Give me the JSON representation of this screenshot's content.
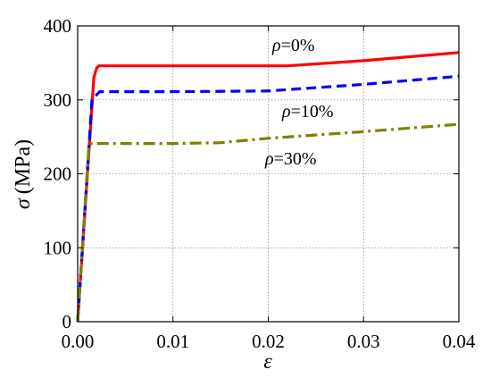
{
  "chart_data": {
    "type": "line",
    "xlabel": "ε",
    "ylabel_symbol": "σ",
    "ylabel_unit": "(MPa)",
    "xlim": [
      0,
      0.04
    ],
    "ylim": [
      0,
      400
    ],
    "xticks": [
      0.0,
      0.01,
      0.02,
      0.03,
      0.04
    ],
    "xtick_labels": [
      "0.00",
      "0.01",
      "0.02",
      "0.03",
      "0.04"
    ],
    "yticks": [
      0,
      100,
      200,
      300,
      400
    ],
    "ytick_labels": [
      "0",
      "100",
      "200",
      "300",
      "400"
    ],
    "grid": true,
    "series": [
      {
        "name": "ρ=0%",
        "symbol": "ρ",
        "value_text": "=0%",
        "color": "#ff0000",
        "style": "solid",
        "x": [
          0,
          0.0017,
          0.002,
          0.0022,
          0.02,
          0.022,
          0.03,
          0.04
        ],
        "y": [
          0,
          330,
          343,
          346,
          346,
          346,
          353,
          364
        ]
      },
      {
        "name": "ρ=10%",
        "symbol": "ρ",
        "value_text": "=10%",
        "color": "#0000ff",
        "style": "dashed",
        "x": [
          0,
          0.0015,
          0.002,
          0.0023,
          0.01,
          0.02,
          0.03,
          0.04
        ],
        "y": [
          0,
          300,
          307,
          311,
          311,
          312,
          321,
          332
        ]
      },
      {
        "name": "ρ=30%",
        "symbol": "ρ",
        "value_text": "=30%",
        "color": "#808000",
        "style": "dashdot",
        "x": [
          0,
          0.0012,
          0.0015,
          0.01,
          0.015,
          0.02,
          0.03,
          0.04
        ],
        "y": [
          0,
          240,
          241,
          241,
          242,
          248,
          257,
          267
        ]
      }
    ]
  }
}
